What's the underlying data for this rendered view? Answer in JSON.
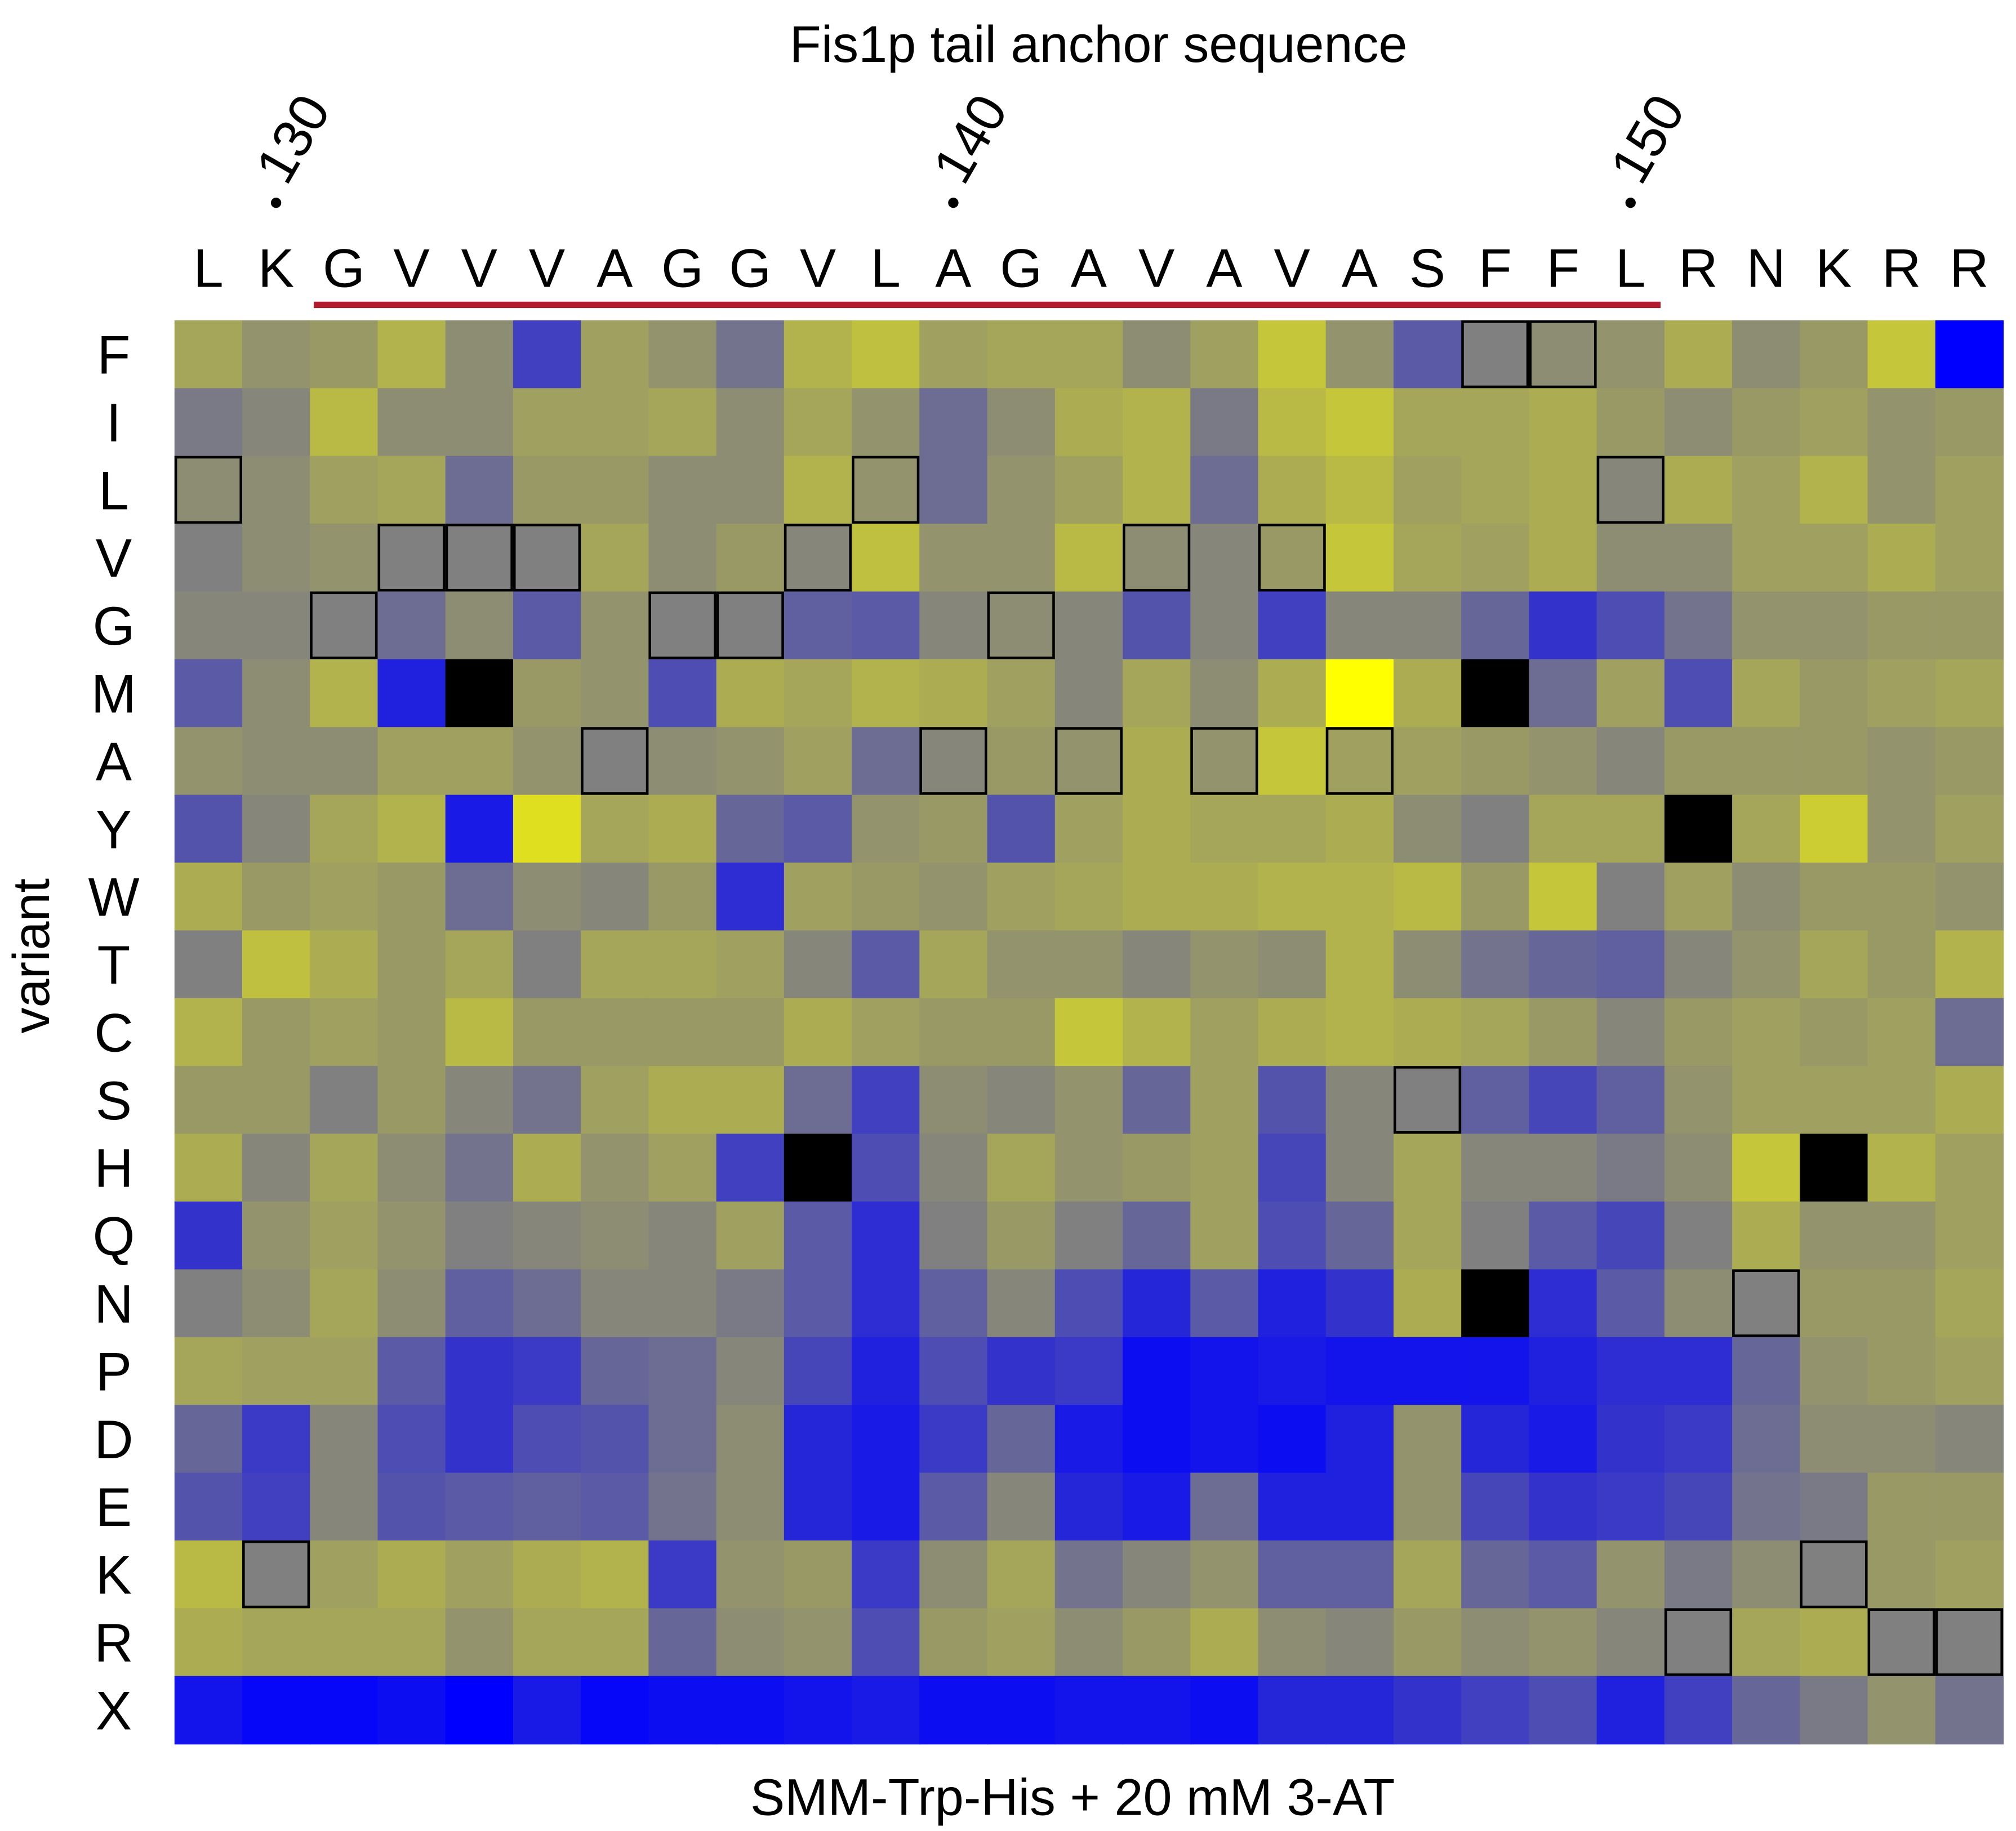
{
  "chart_data": {
    "type": "heatmap",
    "title": "Fis1p tail anchor sequence",
    "xlabel": "",
    "ylabel": "variant",
    "footer": "SMM-Trp-His + 20 mM 3-AT",
    "columns": [
      "L",
      "K",
      "G",
      "V",
      "V",
      "V",
      "A",
      "G",
      "G",
      "V",
      "L",
      "A",
      "G",
      "A",
      "V",
      "A",
      "V",
      "A",
      "S",
      "F",
      "F",
      "L",
      "R",
      "N",
      "K",
      "R",
      "R"
    ],
    "position_ticks": [
      {
        "label": "130",
        "column_index": 1
      },
      {
        "label": "140",
        "column_index": 11
      },
      {
        "label": "150",
        "column_index": 21
      }
    ],
    "underlined_span": {
      "from_column_index": 2,
      "to_column_index": 21,
      "color": "#b01c2e"
    },
    "rows": [
      "F",
      "I",
      "L",
      "V",
      "G",
      "M",
      "A",
      "Y",
      "W",
      "T",
      "C",
      "S",
      "H",
      "Q",
      "N",
      "P",
      "D",
      "E",
      "K",
      "R",
      "X"
    ],
    "value_scale": {
      "min": -1,
      "max": 1,
      "low_color": "#0000ff",
      "mid_color": "#808080",
      "high_color": "#ffff00",
      "missing_color": "#000000"
    },
    "note_wild_type": "cells where variant equals the native residue are outlined",
    "values": [
      [
        0.3,
        0.15,
        0.2,
        0.4,
        0.1,
        -0.5,
        0.25,
        0.15,
        -0.1,
        0.4,
        0.5,
        0.25,
        0.3,
        0.3,
        0.1,
        0.25,
        0.55,
        0.15,
        -0.3,
        0.0,
        0.1,
        0.15,
        0.35,
        0.1,
        0.2,
        0.55,
        -1
      ],
      [
        -0.05,
        0.05,
        0.45,
        0.1,
        0.1,
        0.25,
        0.25,
        0.3,
        0.1,
        0.3,
        0.15,
        -0.15,
        0.1,
        0.35,
        0.4,
        -0.05,
        0.45,
        0.55,
        0.3,
        0.3,
        0.35,
        0.2,
        0.1,
        0.2,
        0.25,
        0.15,
        0.2
      ],
      [
        0.1,
        0.1,
        0.25,
        0.3,
        -0.15,
        0.2,
        0.2,
        0.1,
        0.1,
        0.4,
        0.15,
        -0.15,
        0.15,
        0.25,
        0.4,
        -0.15,
        0.35,
        0.45,
        0.25,
        0.3,
        0.35,
        0.05,
        0.35,
        0.25,
        0.4,
        0.15,
        0.25
      ],
      [
        0.0,
        0.1,
        0.15,
        0.0,
        0.0,
        0.0,
        0.3,
        0.1,
        0.2,
        0.05,
        0.5,
        0.15,
        0.15,
        0.45,
        0.1,
        0.05,
        0.2,
        0.55,
        0.3,
        0.25,
        0.35,
        0.1,
        0.1,
        0.25,
        0.25,
        0.35,
        0.25
      ],
      [
        0.05,
        0.05,
        0.0,
        -0.15,
        0.1,
        -0.3,
        0.15,
        0.0,
        0.0,
        -0.25,
        -0.3,
        0.05,
        0.1,
        0.05,
        -0.35,
        0.05,
        -0.5,
        0.05,
        0.05,
        -0.2,
        -0.6,
        -0.4,
        -0.1,
        0.15,
        0.15,
        0.2,
        0.2
      ],
      [
        -0.3,
        0.1,
        0.4,
        -0.75,
        null,
        0.2,
        0.15,
        -0.4,
        0.35,
        0.3,
        0.4,
        0.35,
        0.25,
        0.05,
        0.3,
        0.1,
        0.35,
        1.0,
        0.35,
        null,
        -0.15,
        0.25,
        -0.4,
        0.3,
        0.2,
        0.25,
        0.3
      ],
      [
        0.15,
        0.1,
        0.1,
        0.25,
        0.25,
        0.15,
        0.0,
        0.1,
        0.15,
        0.25,
        -0.15,
        0.05,
        0.2,
        0.15,
        0.35,
        0.15,
        0.55,
        0.25,
        0.25,
        0.2,
        0.15,
        0.05,
        0.2,
        0.2,
        0.2,
        0.15,
        0.2
      ],
      [
        -0.35,
        0.05,
        0.3,
        0.4,
        -0.8,
        0.75,
        0.3,
        0.35,
        -0.2,
        -0.3,
        0.15,
        0.2,
        -0.35,
        0.25,
        0.35,
        0.3,
        0.3,
        0.35,
        0.1,
        0.0,
        0.3,
        0.3,
        null,
        0.3,
        0.6,
        0.15,
        0.25
      ],
      [
        0.35,
        0.2,
        0.25,
        0.2,
        -0.15,
        0.1,
        0.05,
        0.2,
        -0.65,
        0.25,
        0.2,
        0.15,
        0.25,
        0.3,
        0.35,
        0.35,
        0.4,
        0.4,
        0.45,
        0.2,
        0.55,
        0.0,
        0.25,
        0.1,
        0.2,
        0.2,
        0.15
      ],
      [
        0.0,
        0.5,
        0.35,
        0.2,
        0.3,
        0.0,
        0.3,
        0.3,
        0.25,
        0.05,
        -0.3,
        0.3,
        0.15,
        0.15,
        0.05,
        0.15,
        0.1,
        0.4,
        0.1,
        -0.1,
        -0.2,
        -0.25,
        0.05,
        0.15,
        0.3,
        0.2,
        0.4
      ],
      [
        0.4,
        0.2,
        0.25,
        0.2,
        0.45,
        0.2,
        0.2,
        0.2,
        0.2,
        0.35,
        0.25,
        0.2,
        0.2,
        0.55,
        0.4,
        0.25,
        0.35,
        0.4,
        0.35,
        0.3,
        0.2,
        0.05,
        0.2,
        0.25,
        0.2,
        0.25,
        -0.15
      ],
      [
        0.2,
        0.2,
        0.0,
        0.2,
        0.05,
        -0.1,
        0.25,
        0.35,
        0.35,
        -0.15,
        -0.5,
        0.1,
        0.05,
        0.15,
        -0.2,
        0.25,
        -0.35,
        0.05,
        0.0,
        -0.25,
        -0.45,
        -0.25,
        0.15,
        0.25,
        0.25,
        0.25,
        0.35
      ],
      [
        0.35,
        0.05,
        0.3,
        0.1,
        -0.1,
        0.35,
        0.15,
        0.25,
        -0.5,
        null,
        -0.4,
        0.05,
        0.3,
        0.15,
        0.2,
        0.25,
        -0.45,
        0.05,
        0.3,
        0.05,
        0.05,
        -0.05,
        0.1,
        0.55,
        null,
        0.4,
        0.25
      ],
      [
        -0.6,
        0.15,
        0.25,
        0.15,
        0.0,
        0.05,
        0.1,
        0.05,
        0.25,
        -0.3,
        -0.65,
        0.0,
        0.2,
        0.0,
        -0.2,
        0.25,
        -0.4,
        -0.2,
        0.3,
        0.0,
        -0.3,
        -0.45,
        0.0,
        0.35,
        0.15,
        0.15,
        0.25
      ],
      [
        0.0,
        0.1,
        0.3,
        0.1,
        -0.25,
        -0.15,
        0.05,
        0.05,
        -0.05,
        -0.3,
        -0.65,
        -0.25,
        0.05,
        -0.4,
        -0.7,
        -0.3,
        -0.75,
        -0.6,
        0.35,
        null,
        -0.65,
        -0.3,
        0.1,
        0.0,
        0.2,
        0.2,
        0.3
      ],
      [
        0.3,
        0.25,
        0.25,
        -0.3,
        -0.6,
        -0.55,
        -0.2,
        -0.15,
        0.05,
        -0.45,
        -0.75,
        -0.4,
        -0.6,
        -0.55,
        -0.9,
        -0.85,
        -0.8,
        -0.85,
        -0.85,
        -0.85,
        -0.75,
        -0.65,
        -0.65,
        -0.2,
        0.15,
        0.2,
        0.25
      ],
      [
        -0.2,
        -0.55,
        0.05,
        -0.4,
        -0.6,
        -0.4,
        -0.35,
        -0.15,
        0.1,
        -0.7,
        -0.8,
        -0.55,
        -0.2,
        -0.8,
        -0.9,
        -0.85,
        -0.9,
        -0.75,
        0.15,
        -0.7,
        -0.8,
        -0.6,
        -0.55,
        -0.15,
        0.1,
        0.1,
        0.05
      ],
      [
        -0.35,
        -0.5,
        0.05,
        -0.35,
        -0.3,
        -0.25,
        -0.3,
        -0.1,
        0.1,
        -0.7,
        -0.8,
        -0.3,
        0.05,
        -0.7,
        -0.8,
        -0.15,
        -0.75,
        -0.75,
        0.15,
        -0.45,
        -0.6,
        -0.55,
        -0.45,
        -0.1,
        -0.05,
        0.2,
        0.2
      ],
      [
        0.45,
        0.0,
        0.25,
        0.35,
        0.25,
        0.35,
        0.4,
        -0.55,
        0.15,
        0.2,
        -0.55,
        0.1,
        0.3,
        -0.1,
        0.05,
        0.15,
        -0.25,
        -0.25,
        0.3,
        -0.2,
        -0.3,
        0.15,
        -0.05,
        0.1,
        0.0,
        0.2,
        0.25
      ],
      [
        0.35,
        0.3,
        0.3,
        0.3,
        0.15,
        0.3,
        0.3,
        -0.2,
        0.1,
        0.15,
        -0.4,
        0.2,
        0.25,
        0.1,
        0.2,
        0.35,
        0.1,
        0.05,
        0.2,
        0.1,
        0.15,
        0.05,
        0.0,
        0.3,
        0.35,
        0.0,
        0.0
      ],
      [
        -0.85,
        -0.95,
        -0.95,
        -0.9,
        -1,
        -0.8,
        -0.95,
        -0.9,
        -0.9,
        -0.85,
        -0.8,
        -0.9,
        -0.9,
        -0.85,
        -0.85,
        -0.9,
        -0.7,
        -0.7,
        -0.6,
        -0.5,
        -0.4,
        -0.75,
        -0.5,
        -0.2,
        -0.05,
        0.15,
        -0.1
      ]
    ]
  }
}
